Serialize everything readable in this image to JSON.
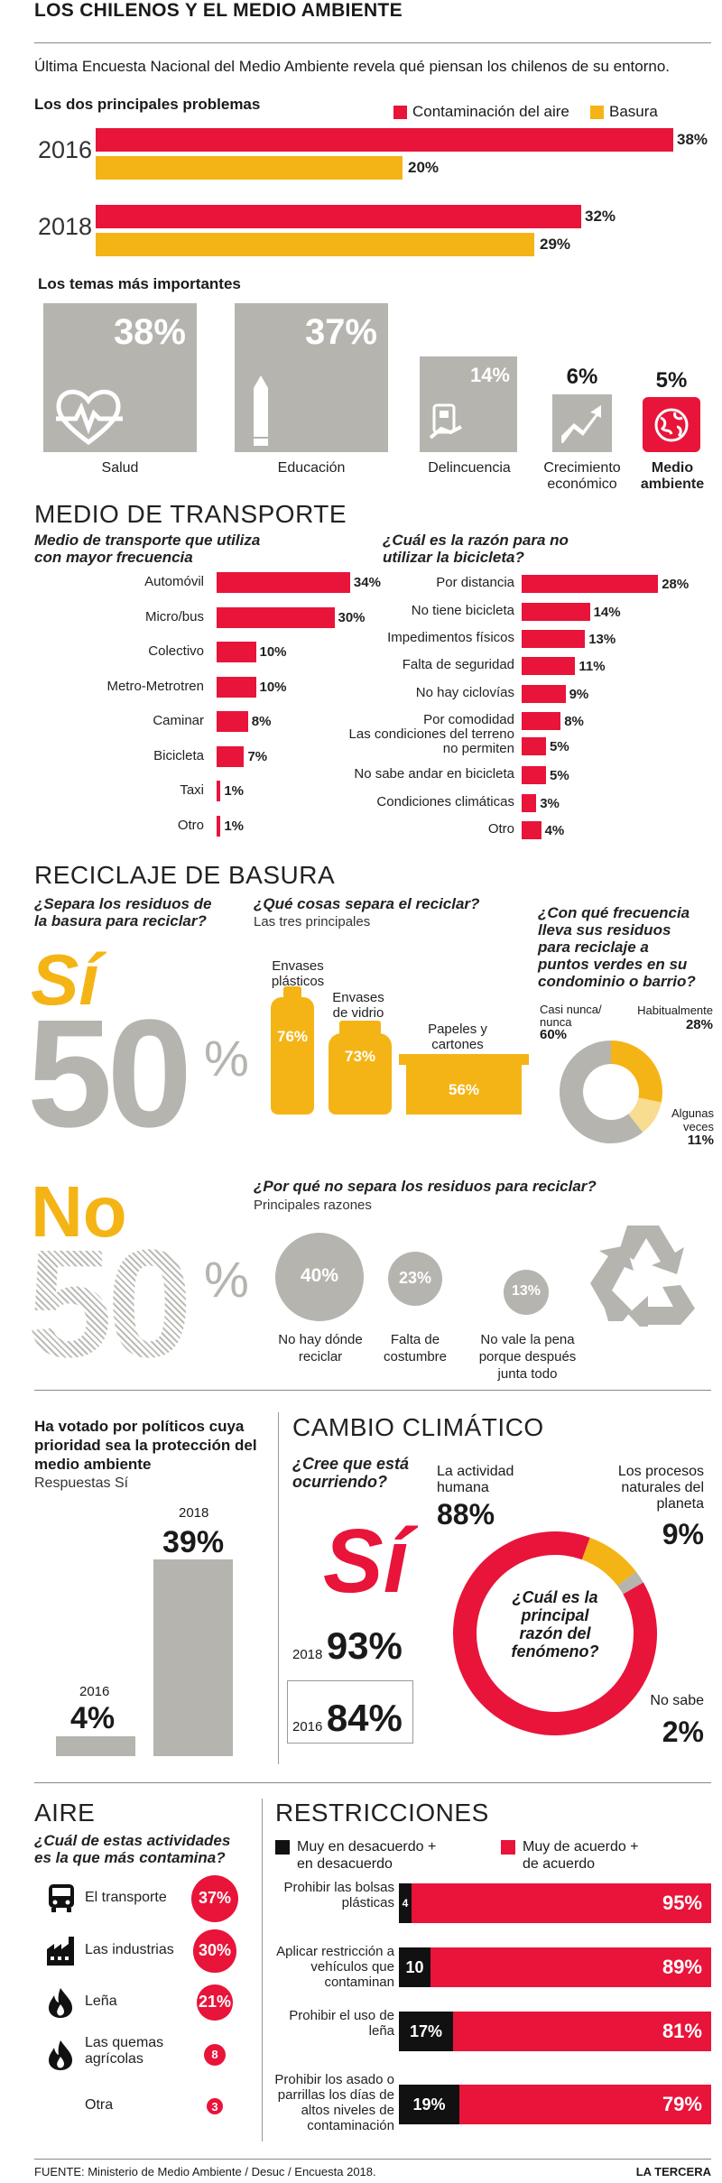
{
  "header": {
    "title": "LOS CHILENOS Y EL MEDIO AMBIENTE",
    "intro": "Última Encuesta Nacional del Medio Ambiente revela qué piensan los chilenos de su entorno."
  },
  "problems": {
    "title": "Los dos principales problemas",
    "legend": [
      "Contaminación del aire",
      "Basura"
    ],
    "years": [
      {
        "year": "2016",
        "air": 38,
        "air_label": "38%",
        "trash": 20,
        "trash_label": "20%"
      },
      {
        "year": "2018",
        "air": 32,
        "air_label": "32%",
        "trash": 29,
        "trash_label": "29%"
      }
    ]
  },
  "topics": {
    "title": "Los temas más importantes",
    "items": [
      {
        "label": "Salud",
        "pct": "38%",
        "icon": "heart-pulse-icon"
      },
      {
        "label": "Educación",
        "pct": "37%",
        "icon": "pencil-icon"
      },
      {
        "label": "Delincuencia",
        "pct": "14%",
        "icon": "wallet-hand-icon"
      },
      {
        "label": "Crecimiento\neconómico",
        "pct": "6%",
        "icon": "growth-chart-icon"
      },
      {
        "label": "Medio\nambiente",
        "pct": "5%",
        "icon": "globe-icon"
      }
    ]
  },
  "transport": {
    "title": "MEDIO DE TRANSPORTE",
    "q1": "Medio de transporte que utiliza con mayor frecuencia",
    "modes": [
      {
        "label": "Automóvil",
        "v": 34,
        "t": "34%"
      },
      {
        "label": "Micro/bus",
        "v": 30,
        "t": "30%"
      },
      {
        "label": "Colectivo",
        "v": 10,
        "t": "10%"
      },
      {
        "label": "Metro-Metrotren",
        "v": 10,
        "t": "10%"
      },
      {
        "label": "Caminar",
        "v": 8,
        "t": "8%"
      },
      {
        "label": "Bicicleta",
        "v": 7,
        "t": "7%"
      },
      {
        "label": "Taxi",
        "v": 1,
        "t": "1%"
      },
      {
        "label": "Otro",
        "v": 1,
        "t": "1%"
      }
    ],
    "q2": "¿Cuál es la razón para no utilizar la bicicleta?",
    "reasons": [
      {
        "label": "Por distancia",
        "v": 28,
        "t": "28%"
      },
      {
        "label": "No tiene bicicleta",
        "v": 14,
        "t": "14%"
      },
      {
        "label": "Impedimentos físicos",
        "v": 13,
        "t": "13%"
      },
      {
        "label": "Falta de seguridad",
        "v": 11,
        "t": "11%"
      },
      {
        "label": "No hay ciclovías",
        "v": 9,
        "t": "9%"
      },
      {
        "label": "Por comodidad",
        "v": 8,
        "t": "8%"
      },
      {
        "label": "Las condiciones del terreno no permiten",
        "v": 5,
        "t": "5%"
      },
      {
        "label": "No sabe andar en bicicleta",
        "v": 5,
        "t": "5%"
      },
      {
        "label": "Condiciones climáticas",
        "v": 3,
        "t": "3%"
      },
      {
        "label": "Otro",
        "v": 4,
        "t": "4%"
      }
    ]
  },
  "recycle": {
    "title": "RECICLAJE DE BASURA",
    "q1": "¿Separa los residuos de la basura para reciclar?",
    "yes": "Sí",
    "yes_pct": "50",
    "no": "No",
    "no_pct": "50",
    "pct_sign": "%",
    "q2": "¿Qué cosas separa el reciclar?",
    "q2_sub": "Las tres principales",
    "items": [
      {
        "label": "Envases plásticos",
        "pct": "76%"
      },
      {
        "label": "Envases de vidrio",
        "pct": "73%"
      },
      {
        "label": "Papeles y cartones",
        "pct": "56%"
      }
    ],
    "q3": "¿Con qué frecuencia lleva sus residuos para reciclaje a puntos verdes en su condominio o barrio?",
    "freq": [
      {
        "label": "Casi nunca/ nunca",
        "t": "60%",
        "v": 60,
        "color": "#b5b4af"
      },
      {
        "label": "Habitualmente",
        "t": "28%",
        "v": 28,
        "color": "#f5b416"
      },
      {
        "label": "Algunas veces",
        "t": "11%",
        "v": 11,
        "color": "#f8dc8f"
      }
    ],
    "q4": "¿Por qué no separa los residuos para reciclar?",
    "q4_sub": "Principales razones",
    "why": [
      {
        "label": "No hay dónde reciclar",
        "pct": "40%"
      },
      {
        "label": "Falta de costumbre",
        "pct": "23%"
      },
      {
        "label": "No vale la pena porque después junta todo",
        "pct": "13%"
      }
    ]
  },
  "voted": {
    "title": "Ha votado por políticos cuya prioridad sea la protección del medio ambiente",
    "sub": "Respuestas Sí",
    "bars": [
      {
        "year": "2016",
        "v": 4,
        "t": "4%"
      },
      {
        "year": "2018",
        "v": 39,
        "t": "39%"
      }
    ]
  },
  "climate": {
    "title": "CAMBIO CLIMÁTICO",
    "q": "¿Cree que está ocurriendo?",
    "yes": "Sí",
    "y2018": "2018",
    "v2018": "93%",
    "y2016": "2016",
    "v2016": "84%",
    "center": "¿Cuál es la principal razón del fenómeno?",
    "causes": [
      {
        "label": "La actividad humana",
        "t": "88%",
        "v": 88,
        "color": "#e8143a"
      },
      {
        "label": "Los procesos naturales del planeta",
        "t": "9%",
        "v": 9,
        "color": "#f5b416"
      },
      {
        "label": "No sabe",
        "t": "2%",
        "v": 2,
        "color": "#b5b4af"
      }
    ]
  },
  "air": {
    "title": "AIRE",
    "q": "¿Cuál de estas actividades es la que más contamina?",
    "items": [
      {
        "label": "El transporte",
        "t": "37%",
        "v": 37,
        "icon": "bus-icon"
      },
      {
        "label": "Las industrias",
        "t": "30%",
        "v": 30,
        "icon": "factory-icon"
      },
      {
        "label": "Leña",
        "t": "21%",
        "v": 21,
        "icon": "fire-icon"
      },
      {
        "label": "Las quemas agrícolas",
        "t": "8",
        "v": 8,
        "icon": "fire-icon"
      },
      {
        "label": "Otra",
        "t": "3",
        "v": 3,
        "icon": ""
      }
    ]
  },
  "restr": {
    "title": "RESTRICCIONES",
    "legend_dis": "Muy en desacuerdo + en desacuerdo",
    "legend_agr": "Muy de acuerdo + de acuerdo",
    "items": [
      {
        "label": "Prohibir las bolsas plásticas",
        "dis": 4,
        "dis_t": "4",
        "agr": 95,
        "agr_t": "95%"
      },
      {
        "label": "Aplicar restricción a vehículos que contaminan",
        "dis": 10,
        "dis_t": "10",
        "agr": 89,
        "agr_t": "89%"
      },
      {
        "label": "Prohibir el uso de leña",
        "dis": 17,
        "dis_t": "17%",
        "agr": 81,
        "agr_t": "81%"
      },
      {
        "label": "Prohibir los asado o parrillas los días de altos niveles de contaminación",
        "dis": 19,
        "dis_t": "19%",
        "agr": 79,
        "agr_t": "79%"
      }
    ]
  },
  "footer": {
    "source": "FUENTE: Ministerio de Medio Ambiente / Desuc / Encuesta 2018.",
    "brand": "LA TERCERA"
  },
  "colors": {
    "red": "#e8143a",
    "yellow": "#f5b416",
    "gray": "#b5b4af",
    "black": "#111111"
  }
}
